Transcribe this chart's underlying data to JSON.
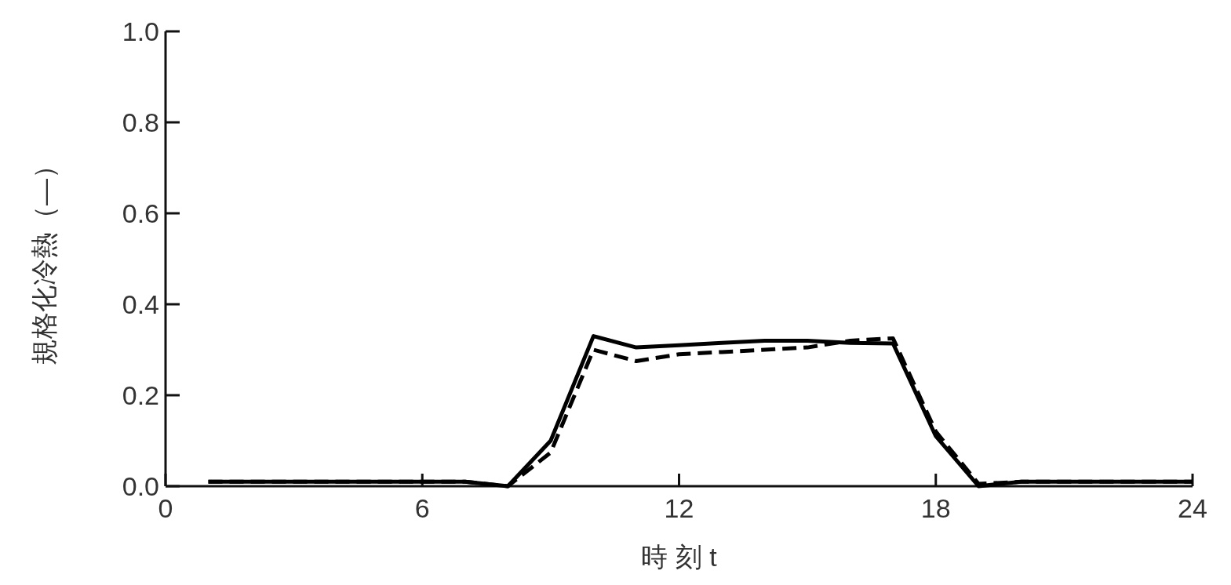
{
  "chart_data": {
    "type": "line",
    "xlabel": "時 刻 t",
    "ylabel": "規格化冷熱（—）",
    "x": [
      1,
      2,
      3,
      4,
      5,
      6,
      7,
      8,
      9,
      10,
      11,
      12,
      13,
      14,
      15,
      16,
      17,
      18,
      19,
      20,
      21,
      22,
      23,
      24
    ],
    "xlim": [
      0,
      24
    ],
    "xticks": [
      0,
      6,
      12,
      18,
      24
    ],
    "ylim": [
      0,
      1
    ],
    "yticks": [
      {
        "value": 0,
        "label": "0.0"
      },
      {
        "value": 0.2,
        "label": "0.2"
      },
      {
        "value": 0.4,
        "label": "0.4"
      },
      {
        "value": 0.6,
        "label": "0.6"
      },
      {
        "value": 0.8,
        "label": "0.8"
      },
      {
        "value": 1,
        "label": "1.0"
      }
    ],
    "grid": false,
    "marker": "none",
    "series": [
      {
        "color": "#000000",
        "line_style": "solid",
        "values": [
          0.01,
          0.01,
          0.01,
          0.01,
          0.01,
          0.01,
          0.01,
          0,
          0.1,
          0.33,
          0.305,
          0.31,
          0.315,
          0.32,
          0.32,
          0.315,
          0.314,
          0.11,
          0,
          0.01,
          0.01,
          0.01,
          0.01,
          0.01
        ]
      },
      {
        "color": "#000000",
        "line_style": "dashed",
        "values": [
          0.01,
          0.01,
          0.01,
          0.01,
          0.01,
          0.01,
          0.01,
          0,
          0.074,
          0.3,
          0.275,
          0.29,
          0.295,
          0.3,
          0.305,
          0.32,
          0.325,
          0.12,
          0.005,
          0.01,
          0.01,
          0.01,
          0.01,
          0.01
        ]
      }
    ]
  }
}
